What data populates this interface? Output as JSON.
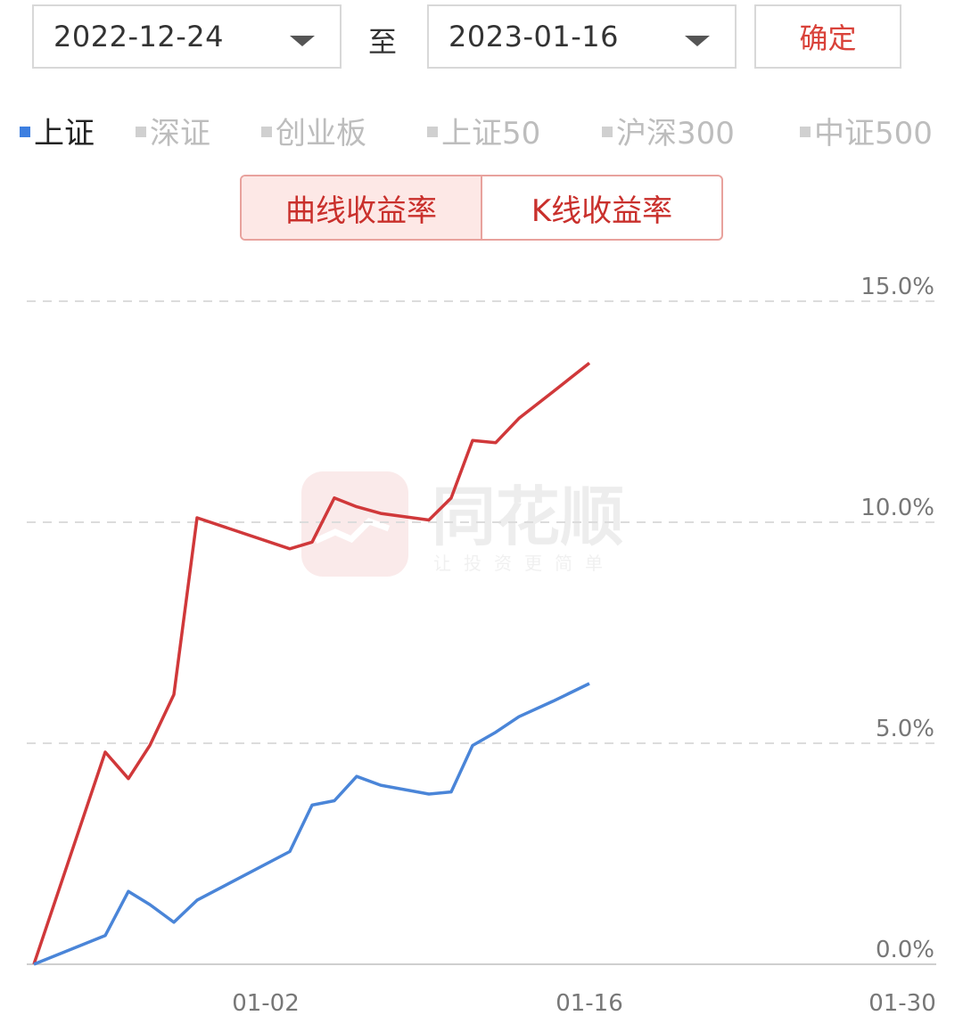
{
  "date_range": {
    "start": "2022-12-24",
    "separator": "至",
    "end": "2023-01-16",
    "confirm_label": "确定"
  },
  "index_tabs": [
    {
      "label": "上证",
      "active": true
    },
    {
      "label": "深证",
      "active": false
    },
    {
      "label": "创业板",
      "active": false
    },
    {
      "label": "上证50",
      "active": false
    },
    {
      "label": "沪深300",
      "active": false
    },
    {
      "label": "中证500",
      "active": false
    }
  ],
  "mode_toggle": {
    "curve_label": "曲线收益率",
    "kline_label": "K线收益率",
    "selected": "curve_label"
  },
  "watermark": {
    "brand": "同花顺",
    "slogan": "让投资更简单"
  },
  "colors": {
    "accent_red": "#d9423a",
    "series_red": "#d0383a",
    "series_blue": "#4a85d8"
  },
  "chart_data": {
    "type": "line",
    "x_ticks": [
      "01-02",
      "01-16",
      "01-30"
    ],
    "y_ticks": [
      "0.0%",
      "5.0%",
      "10.0%",
      "15.0%"
    ],
    "ylim": [
      0,
      15
    ],
    "grid": true,
    "series": [
      {
        "color": "#d0383a",
        "x": [
          "12-24",
          "12-27",
          "12-28",
          "12-29",
          "12-30",
          "12-31",
          "01-03",
          "01-04",
          "01-05",
          "01-06",
          "01-07",
          "01-09",
          "01-10",
          "01-11",
          "01-12",
          "01-13",
          "01-14",
          "01-16"
        ],
        "values": [
          0,
          4.8,
          4.2,
          4.95,
          6.1,
          10.1,
          9.4,
          9.55,
          10.55,
          10.35,
          10.2,
          10.05,
          10.55,
          11.85,
          11.8,
          12.35,
          12.95,
          13.6
        ]
      },
      {
        "color": "#4a85d8",
        "x": [
          "12-24",
          "12-27",
          "12-28",
          "12-29",
          "12-30",
          "12-31",
          "01-03",
          "01-04",
          "01-05",
          "01-06",
          "01-07",
          "01-09",
          "01-10",
          "01-11",
          "01-12",
          "01-13",
          "01-14",
          "01-16"
        ],
        "values": [
          0,
          0.65,
          1.65,
          1.35,
          0.95,
          1.45,
          2.55,
          3.6,
          3.7,
          4.25,
          4.05,
          3.85,
          3.9,
          4.95,
          5.25,
          5.6,
          5.95,
          6.35
        ]
      }
    ]
  }
}
